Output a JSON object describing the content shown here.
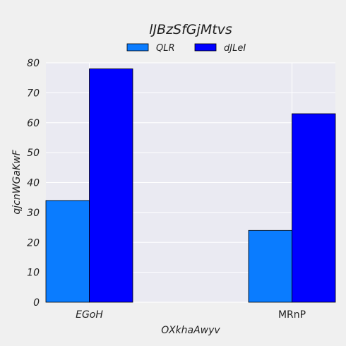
{
  "chart_data": {
    "type": "bar",
    "title": "lJBzSfGjMtvs",
    "xlabel": "OXkhaAwyv",
    "ylabel": "qjcnWGaKwF",
    "categories": [
      "EGoH",
      "MRnP"
    ],
    "series": [
      {
        "name": "QLR",
        "values": [
          34,
          24
        ],
        "color": "#0a7cff"
      },
      {
        "name": "dJLeI",
        "values": [
          78,
          63
        ],
        "color": "#0000ff"
      }
    ],
    "ylim": [
      0,
      80
    ],
    "yticks": [
      0,
      10,
      20,
      30,
      40,
      50,
      60,
      70,
      80
    ],
    "grid": true,
    "legend_position": "top-center"
  },
  "colors": {
    "background": "#f0f0f0",
    "plot_background": "#eaeaf2",
    "grid": "#ffffff",
    "bar_edge": "#000000"
  }
}
